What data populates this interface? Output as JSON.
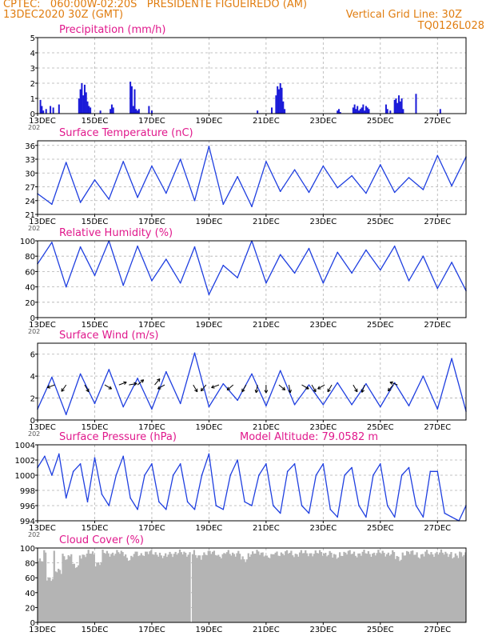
{
  "header": {
    "line1_left": "CPTEC:   060:00W-02:20S   PRESIDENTE FIGUEIREDO (AM)",
    "line2_left": "13DEC2020 30Z (GMT)",
    "line2_right": "Vertical Grid Line: 30Z",
    "line3_right": "TQ0126L028"
  },
  "colors": {
    "header": "#e07d10",
    "title": "#e0188c",
    "series": "#1f3fe0",
    "bars": "#1a1ad8",
    "cloud": "#b4b4b4",
    "grid": "#b0b0b0"
  },
  "x_axis": {
    "tick_labels": [
      "13DEC",
      "15DEC",
      "17DEC",
      "19DEC",
      "21DEC",
      "23DEC",
      "25DEC",
      "27DEC"
    ],
    "tick_days": [
      0,
      2,
      4,
      6,
      8,
      10,
      12,
      14
    ],
    "range_days": [
      0,
      15
    ],
    "year_fragment": "202"
  },
  "chart_data": [
    {
      "type": "bar",
      "title": "Precipitation (mm/h)",
      "ylim": [
        0,
        5
      ],
      "yticks": [
        0,
        1,
        2,
        3,
        4,
        5
      ],
      "grid": true,
      "x": [
        0.1,
        0.15,
        0.2,
        0.3,
        0.45,
        0.55,
        0.75,
        1.45,
        1.5,
        1.55,
        1.6,
        1.65,
        1.7,
        1.75,
        1.8,
        1.85,
        2.2,
        2.55,
        2.6,
        2.65,
        3.25,
        3.3,
        3.35,
        3.4,
        3.45,
        3.5,
        3.55,
        3.9,
        4.0,
        7.7,
        8.2,
        8.35,
        8.4,
        8.45,
        8.5,
        8.55,
        8.6,
        8.65,
        10.5,
        10.55,
        10.6,
        11.05,
        11.1,
        11.15,
        11.2,
        11.25,
        11.3,
        11.35,
        11.4,
        11.45,
        11.5,
        11.55,
        11.6,
        12.2,
        12.25,
        12.35,
        12.5,
        12.55,
        12.6,
        12.65,
        12.7,
        12.75,
        12.8,
        13.25,
        14.1
      ],
      "values": [
        0.9,
        0.5,
        0.2,
        0.3,
        0.5,
        0.4,
        0.6,
        1.0,
        1.6,
        2.0,
        1.2,
        1.9,
        1.4,
        0.8,
        0.5,
        0.4,
        0.2,
        0.3,
        0.6,
        0.4,
        2.1,
        1.8,
        0.5,
        1.6,
        0.3,
        0.2,
        0.3,
        0.5,
        0.2,
        0.2,
        0.4,
        1.2,
        1.8,
        1.6,
        2.0,
        1.7,
        0.8,
        0.3,
        0.2,
        0.3,
        0.1,
        0.4,
        0.6,
        0.3,
        0.5,
        0.2,
        0.3,
        0.4,
        0.6,
        0.2,
        0.5,
        0.4,
        0.3,
        0.6,
        0.3,
        0.2,
        0.9,
        1.0,
        0.7,
        1.2,
        0.8,
        1.0,
        0.3,
        1.3,
        0.3
      ]
    },
    {
      "type": "line",
      "title": "Surface Temperature (nC)",
      "ylim": [
        21,
        37
      ],
      "yticks": [
        21,
        24,
        27,
        30,
        33,
        36
      ],
      "grid": true,
      "x": [
        0,
        0.5,
        1.0,
        1.5,
        2.0,
        2.5,
        3.0,
        3.5,
        4.0,
        4.5,
        5.0,
        5.5,
        6.0,
        6.5,
        7.0,
        7.5,
        8.0,
        8.5,
        9.0,
        9.5,
        10.0,
        10.5,
        11.0,
        11.5,
        12.0,
        12.5,
        13.0,
        13.5,
        14.0,
        14.5,
        15.0
      ],
      "values": [
        25.5,
        23.2,
        32.3,
        23.6,
        28.5,
        24.3,
        32.5,
        24.7,
        31.5,
        25.6,
        33.0,
        24.0,
        35.8,
        23.2,
        29.2,
        22.7,
        32.5,
        26.0,
        30.7,
        25.8,
        31.5,
        26.8,
        29.4,
        25.6,
        31.8,
        25.8,
        29.0,
        26.4,
        33.8,
        27.2,
        33.5
      ]
    },
    {
      "type": "line",
      "title": "Relative Humidity (%)",
      "ylim": [
        0,
        100
      ],
      "yticks": [
        0,
        20,
        40,
        60,
        80,
        100
      ],
      "grid": true,
      "x": [
        0,
        0.5,
        1.0,
        1.5,
        2.0,
        2.5,
        3.0,
        3.5,
        4.0,
        4.5,
        5.0,
        5.5,
        6.0,
        6.5,
        7.0,
        7.5,
        8.0,
        8.5,
        9.0,
        9.5,
        10.0,
        10.5,
        11.0,
        11.5,
        12.0,
        12.5,
        13.0,
        13.5,
        14.0,
        14.5,
        15.0
      ],
      "values": [
        70,
        98,
        40,
        92,
        55,
        100,
        42,
        93,
        48,
        76,
        45,
        92,
        30,
        68,
        52,
        100,
        45,
        82,
        58,
        90,
        45,
        85,
        58,
        88,
        62,
        93,
        48,
        80,
        38,
        72,
        35
      ]
    },
    {
      "type": "line",
      "title": "Surface Wind (m/s)",
      "ylim": [
        0,
        7
      ],
      "yticks": [
        0,
        2,
        4,
        6
      ],
      "grid": true,
      "x": [
        0,
        0.5,
        1.0,
        1.5,
        2.0,
        2.5,
        3.0,
        3.5,
        4.0,
        4.5,
        5.0,
        5.5,
        6.0,
        6.5,
        7.0,
        7.5,
        8.0,
        8.5,
        9.0,
        9.5,
        10.0,
        10.5,
        11.0,
        11.5,
        12.0,
        12.5,
        13.0,
        13.5,
        14.0,
        14.5,
        15.0
      ],
      "values": [
        1.0,
        3.9,
        0.5,
        4.2,
        1.5,
        4.6,
        1.2,
        3.8,
        1.0,
        4.4,
        1.5,
        6.1,
        1.2,
        3.3,
        1.8,
        4.2,
        1.3,
        4.5,
        1.4,
        3.2,
        1.4,
        3.4,
        1.4,
        3.3,
        1.2,
        3.4,
        1.3,
        4.0,
        1.0,
        5.6,
        0.8
      ],
      "arrow_angles_deg": [
        200,
        235,
        300,
        330,
        20,
        10,
        40,
        50,
        210,
        300,
        230,
        200,
        220,
        240,
        260,
        270,
        320,
        280,
        330,
        300,
        210,
        240,
        300,
        250,
        230,
        160
      ],
      "arrow_days": [
        0.6,
        1.0,
        1.65,
        2.35,
        2.85,
        3.2,
        3.5,
        4.1,
        4.45,
        5.45,
        5.9,
        6.35,
        6.85,
        7.3,
        7.7,
        8.0,
        8.45,
        8.8,
        9.25,
        9.6,
        10.05,
        10.3,
        11.05,
        11.45,
        12.45,
        12.6
      ]
    },
    {
      "type": "line",
      "title": "Surface Pressure (hPa)",
      "annotation": "Model Altitude: 79.0582 m",
      "ylim": [
        994,
        1004
      ],
      "yticks": [
        994,
        996,
        998,
        1000,
        1002,
        1004
      ],
      "grid": true,
      "x": [
        0,
        0.25,
        0.5,
        0.75,
        1.0,
        1.25,
        1.5,
        1.75,
        2.0,
        2.25,
        2.5,
        2.75,
        3.0,
        3.25,
        3.5,
        3.75,
        4.0,
        4.25,
        4.5,
        4.75,
        5.0,
        5.25,
        5.5,
        5.75,
        6.0,
        6.25,
        6.5,
        6.75,
        7.0,
        7.25,
        7.5,
        7.75,
        8.0,
        8.25,
        8.5,
        8.75,
        9.0,
        9.25,
        9.5,
        9.75,
        10.0,
        10.25,
        10.5,
        10.75,
        11.0,
        11.25,
        11.5,
        11.75,
        12.0,
        12.25,
        12.5,
        12.75,
        13.0,
        13.25,
        13.5,
        13.75,
        14.0,
        14.25,
        14.5,
        14.75,
        15.0
      ],
      "values": [
        1001,
        1002.5,
        1000,
        1002.8,
        997,
        1000.5,
        1001.5,
        996.5,
        1002.3,
        997.5,
        996,
        1000,
        1002.5,
        997,
        995.5,
        1000,
        1001.5,
        996.5,
        995.5,
        1000,
        1001.5,
        996.5,
        995.5,
        1000,
        1002.8,
        996,
        995.5,
        1000,
        1002,
        996.5,
        996,
        1000,
        1001.5,
        996,
        995,
        1000.5,
        1001.5,
        996,
        995,
        1000,
        1001.5,
        995.5,
        994.5,
        1000,
        1001,
        996,
        994.5,
        1000,
        1001.5,
        996,
        994.5,
        1000,
        1001,
        996,
        994.5,
        1000.5,
        1000.5,
        995,
        994.5,
        994,
        996
      ]
    },
    {
      "type": "bar",
      "title": "Cloud Cover (%)",
      "ylim": [
        0,
        100
      ],
      "yticks": [
        0,
        20,
        40,
        60,
        80,
        100
      ],
      "grid": true,
      "x_step_days": 0.05,
      "values_note": "",
      "base_level": 93,
      "dips": [
        [
          0.05,
          82
        ],
        [
          0.4,
          60
        ],
        [
          0.7,
          68
        ],
        [
          1.0,
          88
        ],
        [
          1.3,
          75
        ],
        [
          1.6,
          90
        ],
        [
          2.1,
          80
        ],
        [
          2.5,
          95
        ],
        [
          3.2,
          86
        ],
        [
          3.5,
          92
        ],
        [
          4.4,
          88
        ],
        [
          5.2,
          96
        ],
        [
          5.35,
          0
        ],
        [
          5.6,
          88
        ],
        [
          6.4,
          90
        ],
        [
          7.2,
          84
        ],
        [
          8.1,
          88
        ],
        [
          9.0,
          92
        ],
        [
          10.4,
          88
        ],
        [
          11.2,
          92
        ],
        [
          12.6,
          86
        ],
        [
          13.4,
          90
        ],
        [
          14.1,
          94
        ],
        [
          14.6,
          88
        ]
      ]
    }
  ]
}
